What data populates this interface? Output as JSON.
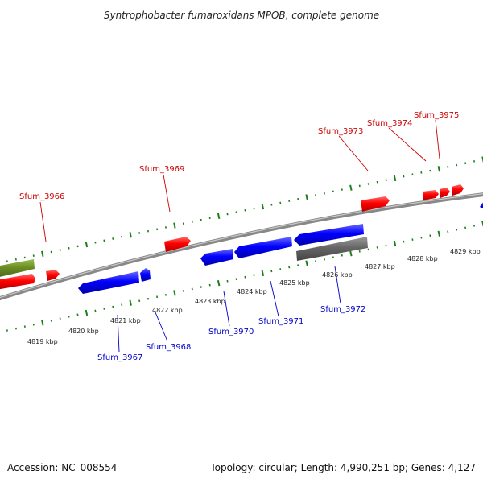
{
  "title": "Syntrophobacter fumaroxidans MPOB, complete genome",
  "footer": {
    "accession": "Accession: NC_008554",
    "summary": "Topology: circular; Length: 4,990,251 bp; Genes: 4,127"
  },
  "colors": {
    "forward_gene": "#ff0000",
    "reverse_gene": "#0000ff",
    "other_feature": "#666666",
    "rna_feature": "#6b8e23",
    "backbone": "#888888",
    "tick_marks": "#1a7f1a",
    "forward_label": "#cc0000",
    "reverse_label": "#0000cc"
  },
  "axis_ticks": [
    {
      "label": "4819 kbp"
    },
    {
      "label": "4820 kbp"
    },
    {
      "label": "4821 kbp"
    },
    {
      "label": "4822 kbp"
    },
    {
      "label": "4823 kbp"
    },
    {
      "label": "4824 kbp"
    },
    {
      "label": "4825 kbp"
    },
    {
      "label": "4826 kbp"
    },
    {
      "label": "4827 kbp"
    },
    {
      "label": "4828 kbp"
    },
    {
      "label": "4829 kbp"
    }
  ],
  "gene_labels": [
    {
      "name": "Sfum_3966",
      "strand": "forward"
    },
    {
      "name": "Sfum_3969",
      "strand": "forward"
    },
    {
      "name": "Sfum_3973",
      "strand": "forward"
    },
    {
      "name": "Sfum_3974",
      "strand": "forward"
    },
    {
      "name": "Sfum_3975",
      "strand": "forward"
    },
    {
      "name": "Sfum_3967",
      "strand": "reverse"
    },
    {
      "name": "Sfum_3968",
      "strand": "reverse"
    },
    {
      "name": "Sfum_3970",
      "strand": "reverse"
    },
    {
      "name": "Sfum_3971",
      "strand": "reverse"
    },
    {
      "name": "Sfum_3972",
      "strand": "reverse"
    }
  ]
}
